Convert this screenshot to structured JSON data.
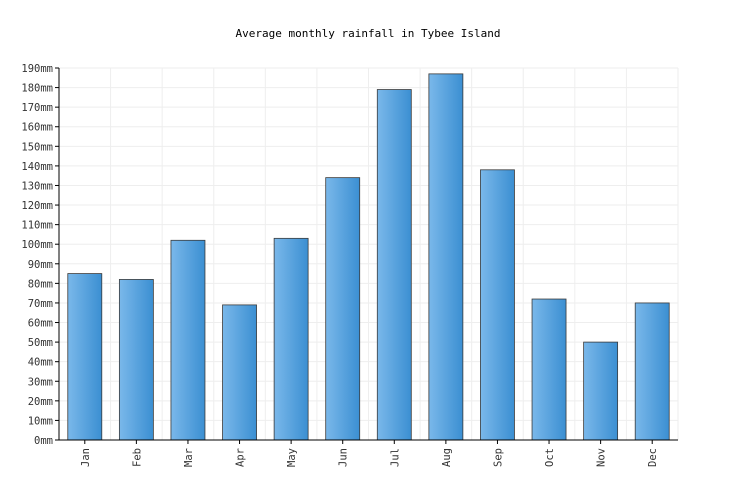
{
  "chart_data": {
    "type": "bar",
    "title": "Average monthly rainfall in Tybee Island",
    "categories": [
      "Jan",
      "Feb",
      "Mar",
      "Apr",
      "May",
      "Jun",
      "Jul",
      "Aug",
      "Sep",
      "Oct",
      "Nov",
      "Dec"
    ],
    "values": [
      85,
      82,
      102,
      69,
      103,
      134,
      179,
      187,
      138,
      72,
      50,
      70
    ],
    "ylim": [
      0,
      190
    ],
    "yticks": [
      0,
      10,
      20,
      30,
      40,
      50,
      60,
      70,
      80,
      90,
      100,
      110,
      120,
      130,
      140,
      150,
      160,
      170,
      180,
      190
    ],
    "ytick_labels": [
      "0mm",
      "10mm",
      "20mm",
      "30mm",
      "40mm",
      "50mm",
      "60mm",
      "70mm",
      "80mm",
      "90mm",
      "100mm",
      "110mm",
      "120mm",
      "130mm",
      "140mm",
      "150mm",
      "160mm",
      "170mm",
      "180mm",
      "190mm"
    ],
    "grid": true,
    "bar_color": "#4a9ad8"
  }
}
